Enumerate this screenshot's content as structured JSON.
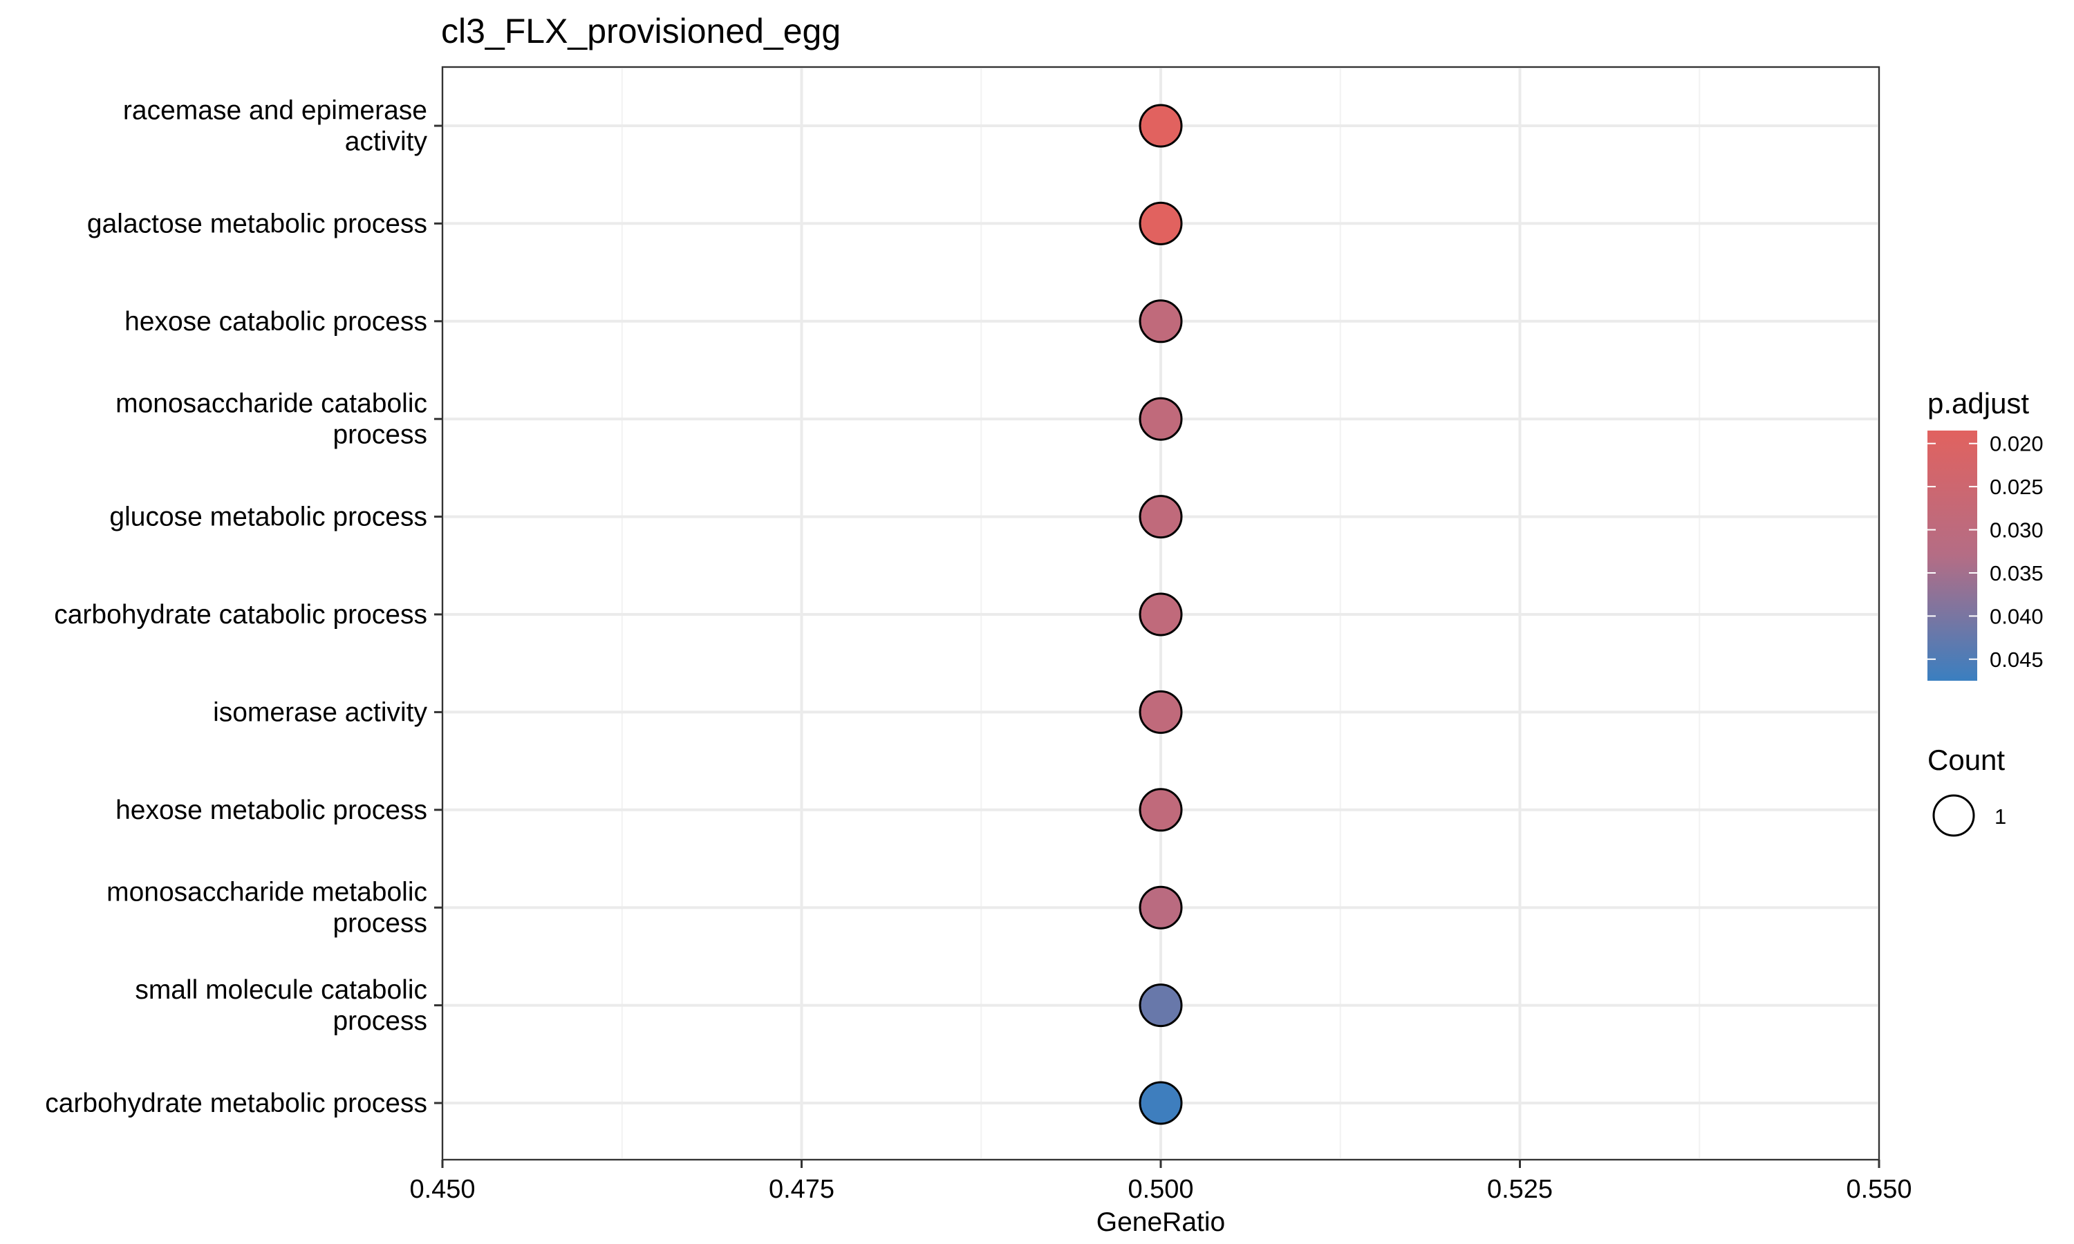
{
  "chart_data": {
    "type": "scatter",
    "title": "cl3_FLX_provisioned_egg",
    "xlabel": "GeneRatio",
    "ylabel": "",
    "xlim": [
      0.45,
      0.55
    ],
    "x_ticks": [
      "0.450",
      "0.475",
      "0.500",
      "0.525",
      "0.550"
    ],
    "x_tick_values": [
      0.45,
      0.475,
      0.5,
      0.525,
      0.55
    ],
    "grid": true,
    "categories": [
      [
        "racemase and epimerase",
        "activity"
      ],
      [
        "galactose metabolic process"
      ],
      [
        "hexose catabolic process"
      ],
      [
        "monosaccharide catabolic",
        "process"
      ],
      [
        "glucose metabolic process"
      ],
      [
        "carbohydrate catabolic process"
      ],
      [
        "isomerase activity"
      ],
      [
        "hexose metabolic process"
      ],
      [
        "monosaccharide metabolic",
        "process"
      ],
      [
        "small molecule catabolic",
        "process"
      ],
      [
        "carbohydrate metabolic process"
      ]
    ],
    "series": [
      {
        "x": [
          0.5,
          0.5,
          0.5,
          0.5,
          0.5,
          0.5,
          0.5,
          0.5,
          0.5,
          0.5,
          0.5
        ],
        "p_adjust": [
          0.0185,
          0.0185,
          0.029,
          0.029,
          0.029,
          0.029,
          0.029,
          0.029,
          0.031,
          0.042,
          0.047
        ],
        "count": [
          1,
          1,
          1,
          1,
          1,
          1,
          1,
          1,
          1,
          1,
          1
        ]
      }
    ],
    "color_legend": {
      "title": "p.adjust",
      "ticks": [
        "0.020",
        "0.025",
        "0.030",
        "0.035",
        "0.040",
        "0.045"
      ],
      "tick_values": [
        0.02,
        0.025,
        0.03,
        0.035,
        0.04,
        0.045
      ],
      "range": [
        0.0185,
        0.0475
      ],
      "low_color": "#e1625f",
      "high_color": "#3a7fc0"
    },
    "size_legend": {
      "title": "Count",
      "entries": [
        "1"
      ]
    },
    "legend_position": "right"
  }
}
